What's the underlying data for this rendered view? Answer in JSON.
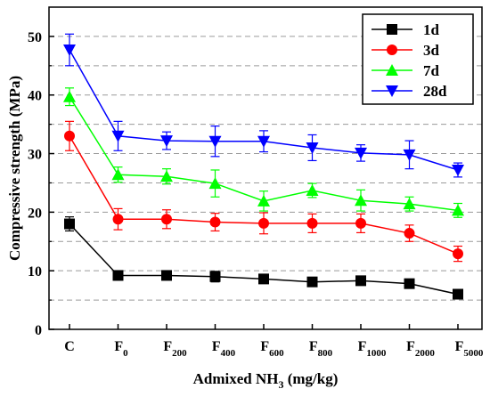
{
  "chart_data": {
    "type": "line",
    "xlabel": {
      "main": "Admixed NH",
      "sub": "3",
      "rest": " (mg/kg)"
    },
    "ylabel": "Compressive strength (MPa)",
    "ylim": [
      0,
      55
    ],
    "yticks": [
      0,
      10,
      20,
      30,
      40,
      50
    ],
    "dashed_gridlines": [
      5,
      15,
      25,
      35,
      45
    ],
    "solid_gridlines": [
      10,
      20,
      30,
      40,
      50
    ],
    "legend_position": "top-right",
    "categories": [
      {
        "main": "C",
        "sub": ""
      },
      {
        "main": "F",
        "sub": "0"
      },
      {
        "main": "F",
        "sub": "200"
      },
      {
        "main": "F",
        "sub": "400"
      },
      {
        "main": "F",
        "sub": "600"
      },
      {
        "main": "F",
        "sub": "800"
      },
      {
        "main": "F",
        "sub": "1000"
      },
      {
        "main": "F",
        "sub": "2000"
      },
      {
        "main": "F",
        "sub": "5000"
      }
    ],
    "series": [
      {
        "name": "1d",
        "color": "#000000",
        "marker": "square",
        "values": [
          18.0,
          9.2,
          9.2,
          9.0,
          8.6,
          8.1,
          8.3,
          7.8,
          6.0
        ],
        "errors": [
          1.2,
          0.8,
          0.7,
          0.9,
          0.5,
          0.6,
          0.5,
          0.5,
          0.4
        ]
      },
      {
        "name": "3d",
        "color": "#ff0000",
        "marker": "circle",
        "values": [
          33.0,
          18.8,
          18.8,
          18.3,
          18.1,
          18.1,
          18.1,
          16.4,
          12.9
        ],
        "errors": [
          2.5,
          1.8,
          1.6,
          1.5,
          1.8,
          1.6,
          1.6,
          1.4,
          1.3
        ]
      },
      {
        "name": "7d",
        "color": "#00ff00",
        "marker": "triangle-up",
        "values": [
          39.7,
          26.4,
          26.1,
          24.9,
          21.9,
          23.7,
          22.0,
          21.4,
          20.3
        ],
        "errors": [
          1.5,
          1.3,
          1.3,
          2.3,
          1.7,
          1.2,
          1.8,
          1.2,
          1.2
        ]
      },
      {
        "name": "28d",
        "color": "#0000ff",
        "marker": "triangle-down",
        "values": [
          47.7,
          33.0,
          32.2,
          32.1,
          32.1,
          31.0,
          30.1,
          29.8,
          27.2
        ],
        "errors": [
          2.7,
          2.5,
          1.5,
          2.6,
          1.8,
          2.2,
          1.4,
          2.4,
          1.2
        ]
      }
    ]
  }
}
